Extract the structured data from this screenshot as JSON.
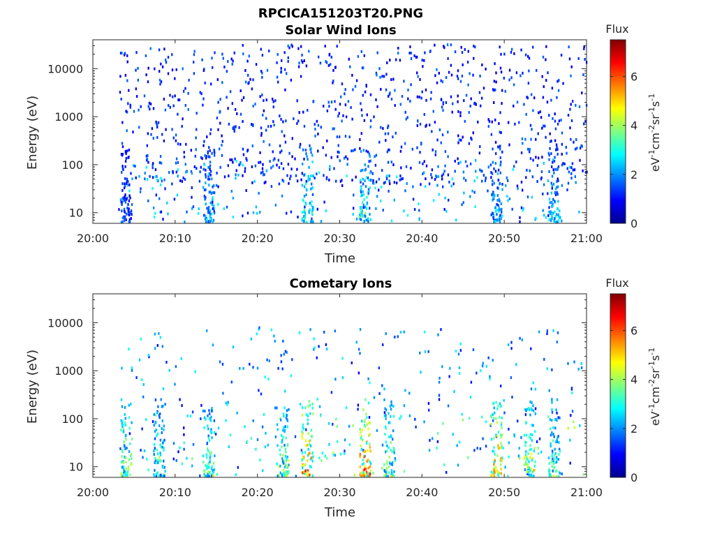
{
  "figure_title": "RPCICA151203T20.PNG",
  "colorbar": {
    "label": "Flux",
    "unit_base": "eV",
    "unit_exp1": "-1",
    "unit_base2": "cm",
    "unit_exp2": "-2",
    "unit_base3": "sr",
    "unit_exp3": "-1",
    "unit_base4": "s",
    "unit_exp4": "-1",
    "ticks": [
      "0",
      "2",
      "4",
      "6"
    ],
    "max": 7.5
  },
  "chart_data": [
    {
      "type": "heatmap",
      "title": "Solar Wind Ions",
      "xlabel": "Time",
      "ylabel": "Energy (eV)",
      "x_ticks": [
        "20:00",
        "20:10",
        "20:20",
        "20:30",
        "20:40",
        "20:50",
        "21:00"
      ],
      "x_range": [
        "20:00",
        "21:00"
      ],
      "y_scale": "log",
      "y_ticks": [
        "10",
        "100",
        "1000",
        "10000"
      ],
      "y_range": [
        6,
        40000
      ],
      "z_label": "Flux",
      "z_range": [
        0,
        7.5
      ],
      "note_on_values": "Sparse speckled counts, mostly low flux (blue) across 50 eV–30 keV, with stronger green/cyan streaks below 100 eV around 20:14, 20:26, 20:32–20:34, 20:49 and 20:56.",
      "bursts": [
        {
          "time": "20:04",
          "max_flux": 2
        },
        {
          "time": "20:14",
          "max_flux": 3
        },
        {
          "time": "20:26",
          "max_flux": 4
        },
        {
          "time": "20:33",
          "max_flux": 4
        },
        {
          "time": "20:49",
          "max_flux": 3
        },
        {
          "time": "20:56",
          "max_flux": 3
        }
      ]
    },
    {
      "type": "heatmap",
      "title": "Cometary Ions",
      "xlabel": "Time",
      "ylabel": "Energy (eV)",
      "x_ticks": [
        "20:00",
        "20:10",
        "20:20",
        "20:30",
        "20:40",
        "20:50",
        "21:00"
      ],
      "x_range": [
        "20:00",
        "21:00"
      ],
      "y_scale": "log",
      "y_ticks": [
        "10",
        "100",
        "1000",
        "10000"
      ],
      "y_range": [
        6,
        40000
      ],
      "z_label": "Flux",
      "z_range": [
        0,
        7.5
      ],
      "note_on_values": "Low-energy (< 100 eV) bursts dominate; highest flux (orange/red, ~6–7) near 20:26, 20:32–20:33 and 20:49; sparse blue counts above 1 keV.",
      "bursts": [
        {
          "time": "20:04",
          "max_flux": 5
        },
        {
          "time": "20:08",
          "max_flux": 4
        },
        {
          "time": "20:14",
          "max_flux": 4.5
        },
        {
          "time": "20:23",
          "max_flux": 5
        },
        {
          "time": "20:26",
          "max_flux": 7
        },
        {
          "time": "20:33",
          "max_flux": 7
        },
        {
          "time": "20:36",
          "max_flux": 5
        },
        {
          "time": "20:49",
          "max_flux": 6.5
        },
        {
          "time": "20:53",
          "max_flux": 5.5
        },
        {
          "time": "20:56",
          "max_flux": 4.5
        }
      ]
    }
  ]
}
